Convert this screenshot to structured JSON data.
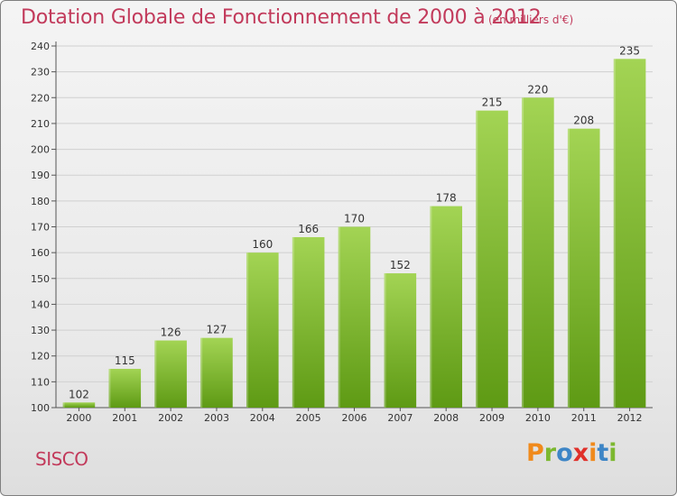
{
  "header": {
    "title": "Dotation Globale de Fonctionnement de 2000 à 2012",
    "subtitle": "(en milliers d'€)"
  },
  "footer": {
    "commune": "SISCO",
    "logo_text": "Proxiti",
    "logo_colors": [
      "#f08a1c",
      "#7cb82f",
      "#3d85c6",
      "#e0302a",
      "#f08a1c",
      "#3d85c6",
      "#7cb82f"
    ]
  },
  "colors": {
    "bar_light": "#a3d454",
    "bar_dark": "#5e9a14",
    "title": "#c23a5b",
    "grid": "#d0d0d0"
  },
  "chart_data": {
    "type": "bar",
    "title": "Dotation Globale de Fonctionnement de 2000 à 2012",
    "subtitle": "(en milliers d'€)",
    "categories": [
      "2000",
      "2001",
      "2002",
      "2003",
      "2004",
      "2005",
      "2006",
      "2007",
      "2008",
      "2009",
      "2010",
      "2011",
      "2012"
    ],
    "values": [
      102,
      115,
      126,
      127,
      160,
      166,
      170,
      152,
      178,
      215,
      220,
      208,
      235
    ],
    "ylim": [
      100,
      240
    ],
    "yticks": [
      100,
      110,
      120,
      130,
      140,
      150,
      160,
      170,
      180,
      190,
      200,
      210,
      220,
      230,
      240
    ],
    "grid": true,
    "xlabel": "",
    "ylabel": ""
  }
}
